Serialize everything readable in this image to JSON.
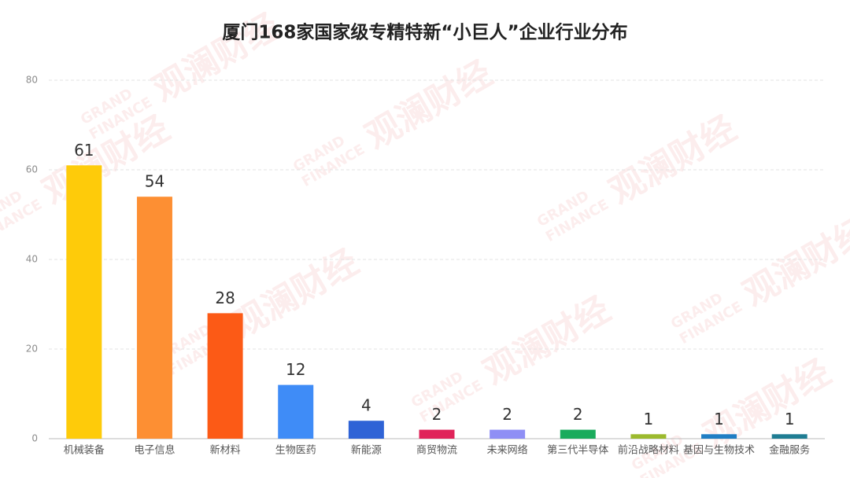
{
  "chart_data": {
    "type": "bar",
    "title": "厦门168家国家级专精特新“小巨人”企业行业分布",
    "categories": [
      "机械装备",
      "电子信息",
      "新材料",
      "生物医药",
      "新能源",
      "商贸物流",
      "未来网络",
      "第三代半导体",
      "前沿战略材料",
      "基因与生物技术",
      "金融服务"
    ],
    "values": [
      61,
      54,
      28,
      12,
      4,
      2,
      2,
      2,
      1,
      1,
      1
    ],
    "colors": [
      "#fecb0a",
      "#fd8f33",
      "#fc5a16",
      "#3f8cf7",
      "#2f63d6",
      "#e0245a",
      "#8f8ff5",
      "#1aab5c",
      "#9cba2e",
      "#1f7ec4",
      "#1f7d93"
    ],
    "ylim": [
      0,
      80
    ],
    "yticks": [
      0,
      20,
      40,
      60,
      80
    ],
    "grid": true,
    "watermark": {
      "cn": "观澜财经",
      "en1": "GRAND",
      "en2": "FINANCE"
    }
  }
}
